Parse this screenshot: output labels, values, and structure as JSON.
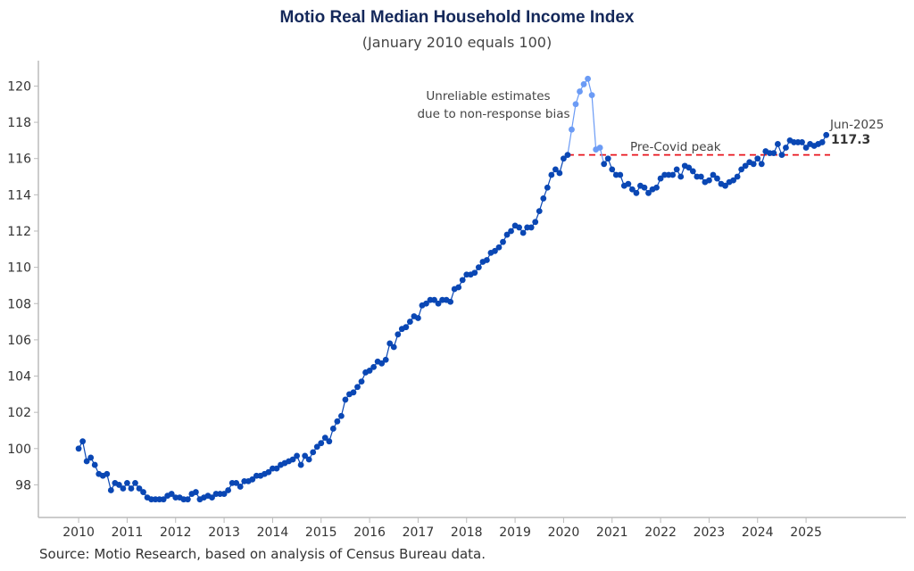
{
  "chart_data": {
    "type": "line",
    "title": "Motio Real Median Household Income Index",
    "subtitle": "(January 2010 equals 100)",
    "xlabel": "",
    "ylabel": "",
    "x_start": "2010-01",
    "frequency": "monthly",
    "xlim": [
      2009.17,
      2027.06
    ],
    "ylim": [
      96.2,
      121.4
    ],
    "x_ticks": [
      "2010",
      "2011",
      "2012",
      "2013",
      "2014",
      "2015",
      "2016",
      "2017",
      "2018",
      "2019",
      "2020",
      "2021",
      "2022",
      "2023",
      "2024",
      "2025"
    ],
    "y_ticks": [
      "98",
      "100",
      "102",
      "104",
      "106",
      "108",
      "110",
      "112",
      "114",
      "116",
      "118",
      "120"
    ],
    "grid": false,
    "values": [
      100.0,
      100.4,
      99.3,
      99.5,
      99.1,
      98.6,
      98.5,
      98.6,
      97.7,
      98.1,
      98.0,
      97.8,
      98.1,
      97.8,
      98.1,
      97.8,
      97.6,
      97.3,
      97.2,
      97.2,
      97.2,
      97.2,
      97.4,
      97.5,
      97.3,
      97.3,
      97.2,
      97.2,
      97.5,
      97.6,
      97.2,
      97.3,
      97.4,
      97.3,
      97.5,
      97.5,
      97.5,
      97.7,
      98.1,
      98.1,
      97.9,
      98.2,
      98.2,
      98.3,
      98.5,
      98.5,
      98.6,
      98.7,
      98.9,
      98.9,
      99.1,
      99.2,
      99.3,
      99.4,
      99.6,
      99.1,
      99.6,
      99.4,
      99.8,
      100.1,
      100.3,
      100.6,
      100.4,
      101.1,
      101.5,
      101.8,
      102.7,
      103.0,
      103.1,
      103.4,
      103.7,
      104.2,
      104.3,
      104.5,
      104.8,
      104.7,
      104.9,
      105.8,
      105.6,
      106.3,
      106.6,
      106.7,
      107.0,
      107.3,
      107.2,
      107.9,
      108.0,
      108.2,
      108.2,
      108.0,
      108.2,
      108.2,
      108.1,
      108.8,
      108.9,
      109.3,
      109.6,
      109.6,
      109.7,
      110.0,
      110.3,
      110.4,
      110.8,
      110.9,
      111.1,
      111.4,
      111.8,
      112.0,
      112.3,
      112.2,
      111.9,
      112.2,
      112.2,
      112.5,
      113.1,
      113.8,
      114.4,
      115.1,
      115.4,
      115.2,
      116.0,
      116.2,
      117.6,
      119.0,
      119.7,
      120.1,
      120.4,
      119.5,
      116.5,
      116.6,
      115.7,
      116.0,
      115.4,
      115.1,
      115.1,
      114.5,
      114.6,
      114.3,
      114.1,
      114.5,
      114.4,
      114.1,
      114.3,
      114.4,
      114.9,
      115.1,
      115.1,
      115.1,
      115.4,
      115.0,
      115.6,
      115.5,
      115.3,
      115.0,
      115.0,
      114.7,
      114.8,
      115.1,
      114.9,
      114.6,
      114.5,
      114.7,
      114.8,
      115.0,
      115.4,
      115.6,
      115.8,
      115.7,
      116.0,
      115.7,
      116.4,
      116.3,
      116.3,
      116.8,
      116.2,
      116.6,
      117.0,
      116.9,
      116.9,
      116.9,
      116.6,
      116.8,
      116.7,
      116.8,
      116.9,
      117.3
    ],
    "unreliable_range_months": [
      26,
      130
    ],
    "unreliable_index_range": [
      122,
      129
    ],
    "reference_line": {
      "label": "Pre-Covid peak",
      "value": 116.2,
      "from_index": 121
    },
    "annotations": {
      "unreliable_line1": "Unreliable estimates",
      "unreliable_line2": "due to non-response bias",
      "last_date": "Jun-2025",
      "last_value": "117.3"
    },
    "colors": {
      "main": "#0a47b4",
      "unreliable": "#6b9bf5",
      "reference": "#e8141c",
      "axis": "#bbbbbb"
    }
  },
  "source": "Source: Motio Research, based on analysis of Census Bureau data."
}
